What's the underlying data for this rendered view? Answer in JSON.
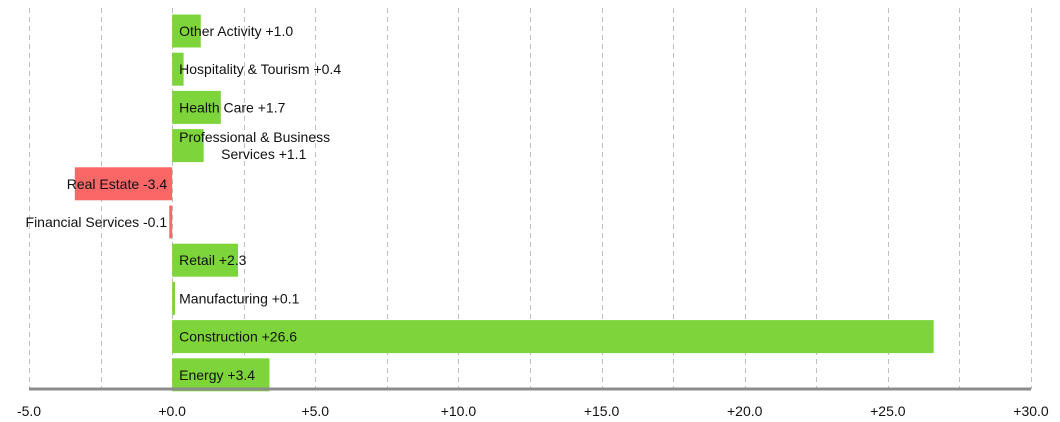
{
  "chart_data": {
    "type": "bar",
    "orientation": "horizontal",
    "title": "",
    "xlabel": "",
    "ylabel": "",
    "xlim": [
      -5.0,
      30.0
    ],
    "xticks": [
      -5.0,
      0.0,
      5.0,
      10.0,
      15.0,
      20.0,
      25.0,
      30.0
    ],
    "tick_labels": [
      "-5.0",
      "+0.0",
      "+5.0",
      "+10.0",
      "+15.0",
      "+20.0",
      "+25.0",
      "+30.0"
    ],
    "gridlines": [
      -5.0,
      -2.5,
      0.0,
      2.5,
      5.0,
      7.5,
      10.0,
      12.5,
      15.0,
      17.5,
      20.0,
      22.5,
      25.0,
      27.5,
      30.0
    ],
    "grid": true,
    "legend": "none",
    "colors": {
      "positive": "#7ed43b",
      "negative": "#fb6767"
    },
    "categories": [
      "Other Activity",
      "Hospitality & Tourism",
      "Health Care",
      "Professional & Business Services",
      "Real Estate",
      "Financial Services",
      "Retail",
      "Manufacturing",
      "Construction",
      "Energy"
    ],
    "values": [
      1.0,
      0.4,
      1.7,
      1.1,
      -3.4,
      -0.1,
      2.3,
      0.1,
      26.6,
      3.4
    ],
    "labels": [
      [
        "Other Activity +1.0"
      ],
      [
        "Hospitality & Tourism +0.4"
      ],
      [
        "Health Care +1.7"
      ],
      [
        "Professional & Business",
        "Services +1.1"
      ],
      [
        "Real Estate -3.4"
      ],
      [
        "Financial Services -0.1"
      ],
      [
        "Retail +2.3"
      ],
      [
        "Manufacturing +0.1"
      ],
      [
        "Construction +26.6"
      ],
      [
        "Energy +3.4"
      ]
    ]
  }
}
